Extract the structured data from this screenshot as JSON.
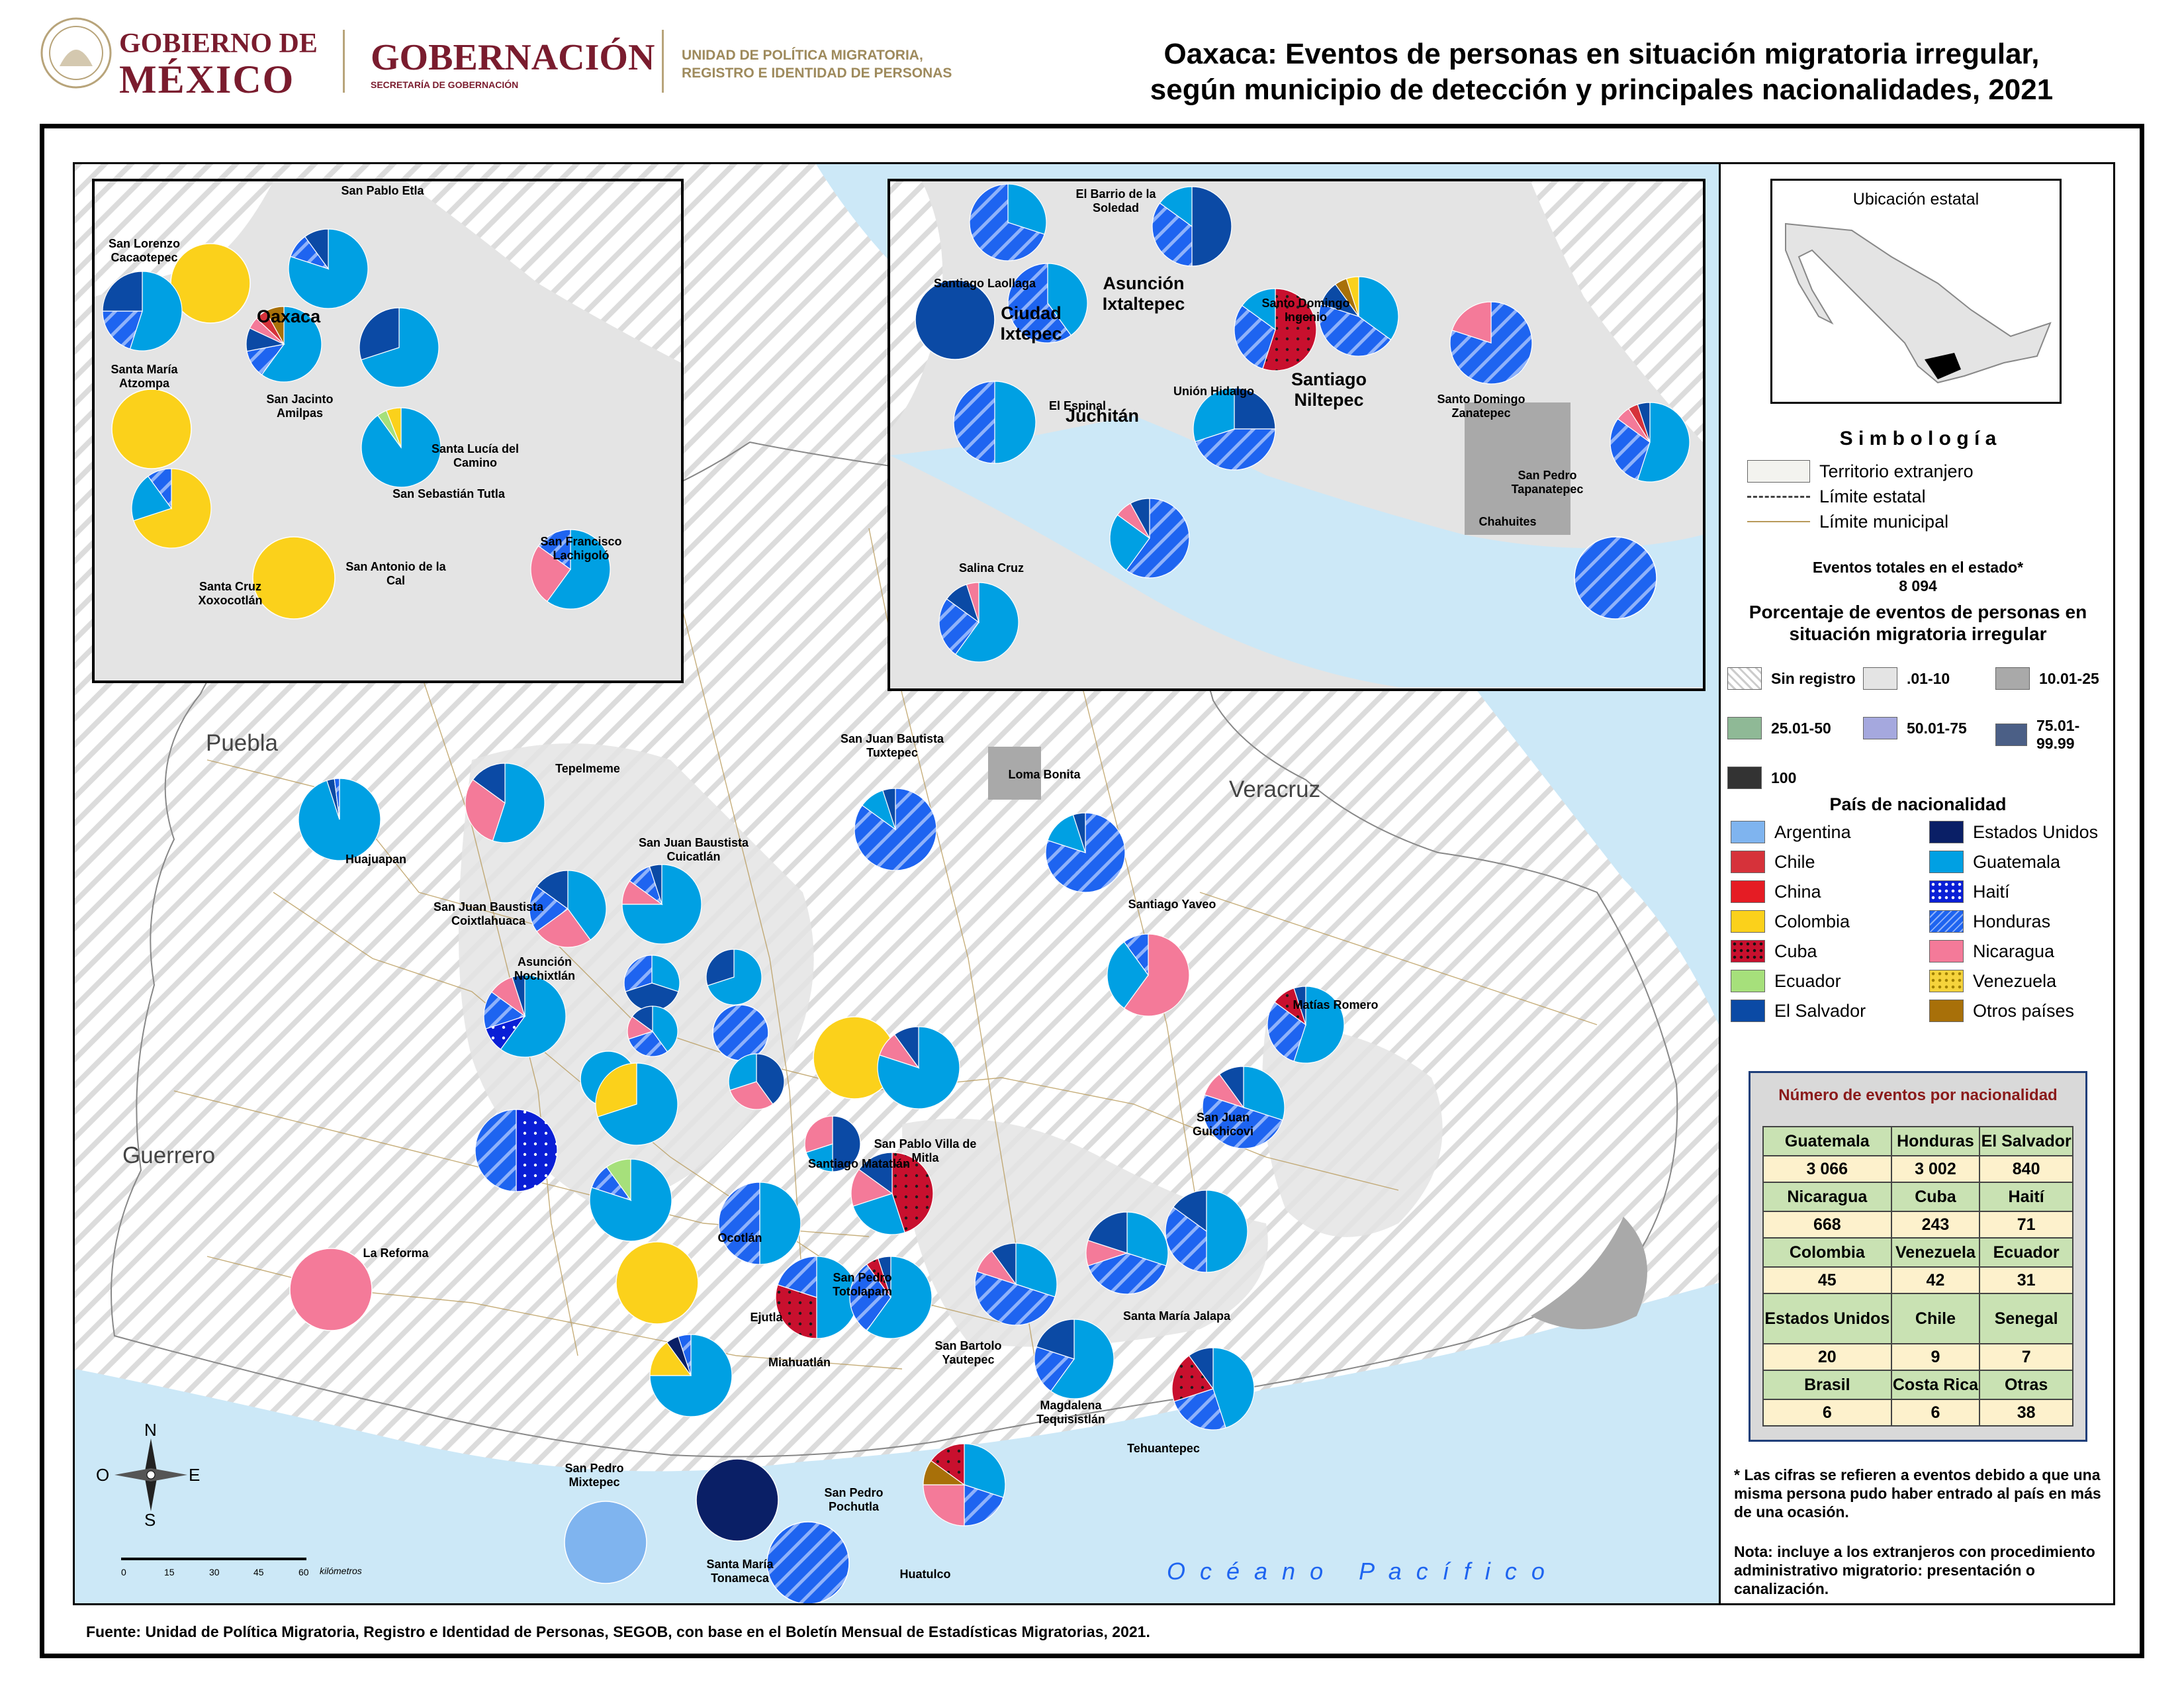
{
  "header": {
    "logo_line1": "GOBIERNO DE",
    "logo_line2": "MÉXICO",
    "agency": "GOBERNACIÓN",
    "agency_sub": "SECRETARÍA DE GOBERNACIÓN",
    "unit_line1": "UNIDAD DE POLÍTICA MIGRATORIA,",
    "unit_line2": "REGISTRO E IDENTIDAD DE PERSONAS",
    "title_line1": "Oaxaca: Eventos de personas en situación migratoria irregular,",
    "title_line2": "según municipio de detección y principales nacionalidades, 2021"
  },
  "colors": {
    "argentina": "#7fb4ef",
    "chile": "#d6323a",
    "china": "#e51c24",
    "colombia": "#fbd11b",
    "cuba": "#c8102e",
    "ecuador": "#a6e07b",
    "el_salvador": "#0b4aa5",
    "estados_unidos": "#0a1f66",
    "guatemala": "#00a0e3",
    "haiti": "#0a1fd6",
    "honduras": "#1e64f0",
    "nicaragua": "#f47a99",
    "venezuela": "#f5d33c",
    "otros": "#a87009",
    "land": "#e4e4e4",
    "sea": "#cce8f7"
  },
  "map": {
    "states": [
      "Puebla",
      "Veracruz",
      "Guerrero"
    ],
    "ocean": "O c é a n o   P a c í f i c o",
    "compass": {
      "n": "N",
      "s": "S",
      "e": "E",
      "o": "O"
    },
    "scale": {
      "ticks": [
        "0",
        "15",
        "30",
        "45",
        "60"
      ],
      "unit": "kilómetros"
    },
    "inset_oaxaca": {
      "city": "Oaxaca",
      "labels": [
        "San Pablo Etla",
        "San Lorenzo Cacaotepec",
        "Santa María Atzompa",
        "San Jacinto Amilpas",
        "Santa Lucía del Camino",
        "San Sebastián Tutla",
        "San Antonio de la Cal",
        "Santa Cruz Xoxocotlán",
        "San Francisco Lachigoló"
      ]
    },
    "inset_istmo": {
      "cities": [
        "Asunción Ixtaltepec",
        "Ciudad Ixtepec",
        "Juchitán",
        "Santiago Niltepec"
      ],
      "labels": [
        "El Barrio de la Soledad",
        "Santiago Laollaga",
        "Santo Domingo Ingenio",
        "El Espinal",
        "Unión Hidalgo",
        "Santo Domingo Zanatepec",
        "San Pedro Tapanatepec",
        "Chahuites",
        "Salina Cruz"
      ]
    },
    "labels": [
      "Tepelmeme",
      "Huajuapan",
      "San Juan Bautista Tuxtepec",
      "Loma Bonita",
      "San Juan Baustista Cuicatlán",
      "San Juan Baustista Coixtlahuaca",
      "Santiago Yaveo",
      "Asunción Nochixtlán",
      "Matías Romero",
      "San Juan Guichicovi",
      "San Pablo Villa de Mitla",
      "Santiago Matatlán",
      "La Reforma",
      "Ocotlán",
      "Ejutla",
      "San Pedro Totolapam",
      "San Bartolo Yautepec",
      "Santa María Jalapa",
      "Miahuatlán",
      "Magdalena Tequisistlán",
      "Tehuantepec",
      "San Pedro Mixtepec",
      "Santa María Tonameca",
      "San Pedro Pochutla",
      "Huatulco"
    ]
  },
  "legend": {
    "location_title": "Ubicación estatal",
    "symbology_title": "S i m b o l o g í a",
    "symbology": [
      "Territorio extranjero",
      "Límite estatal",
      "Límite municipal"
    ],
    "total_title": "Eventos totales en el estado*",
    "total_value": "8 094",
    "pct_title_1": "Porcentaje de eventos de personas en",
    "pct_title_2": "situación migratoria irregular",
    "classes": [
      "Sin registro",
      ".01-10",
      "10.01-25",
      "25.01-50",
      "50.01-75",
      "75.01-99.99",
      "100"
    ],
    "class_colors": [
      "#ffffff",
      "#e4e4e4",
      "#a9a9a9",
      "#8fb996",
      "#a5a8de",
      "#4b5f86",
      "#333333"
    ],
    "nat_title": "País de nacionalidad",
    "nationalities_left": [
      "Argentina",
      "Chile",
      "China",
      "Colombia",
      "Cuba",
      "Ecuador",
      "El Salvador"
    ],
    "nationalities_right": [
      "Estados Unidos",
      "Guatemala",
      "Haití",
      "Honduras",
      "Nicaragua",
      "Venezuela",
      "Otros países"
    ],
    "table_title": "Número de eventos por nacionalidad",
    "table_rows": [
      [
        [
          "Guatemala",
          "3 066"
        ],
        [
          "Honduras",
          "3 002"
        ],
        [
          "El Salvador",
          "840"
        ]
      ],
      [
        [
          "Nicaragua",
          "668"
        ],
        [
          "Cuba",
          "243"
        ],
        [
          "Haití",
          "71"
        ]
      ],
      [
        [
          "Colombia",
          "45"
        ],
        [
          "Venezuela",
          "42"
        ],
        [
          "Ecuador",
          "31"
        ]
      ],
      [
        [
          "Estados Unidos",
          "20"
        ],
        [
          "Chile",
          "9"
        ],
        [
          "Senegal",
          "7"
        ]
      ],
      [
        [
          "Brasil",
          "6"
        ],
        [
          "Costa Rica",
          "6"
        ],
        [
          "Otras",
          "38"
        ]
      ]
    ],
    "footnote": "* Las cifras se refieren a eventos debido a que una misma persona pudo haber entrado al país en más de una ocasión.",
    "note": "Nota: incluye a los extranjeros con procedimiento administrativo migratorio: presentación o canalización."
  },
  "source": "Fuente: Unidad de Política Migratoria, Registro e Identidad de Personas, SEGOB, con base en el Boletín Mensual de Estadísticas Migratorias, 2021."
}
